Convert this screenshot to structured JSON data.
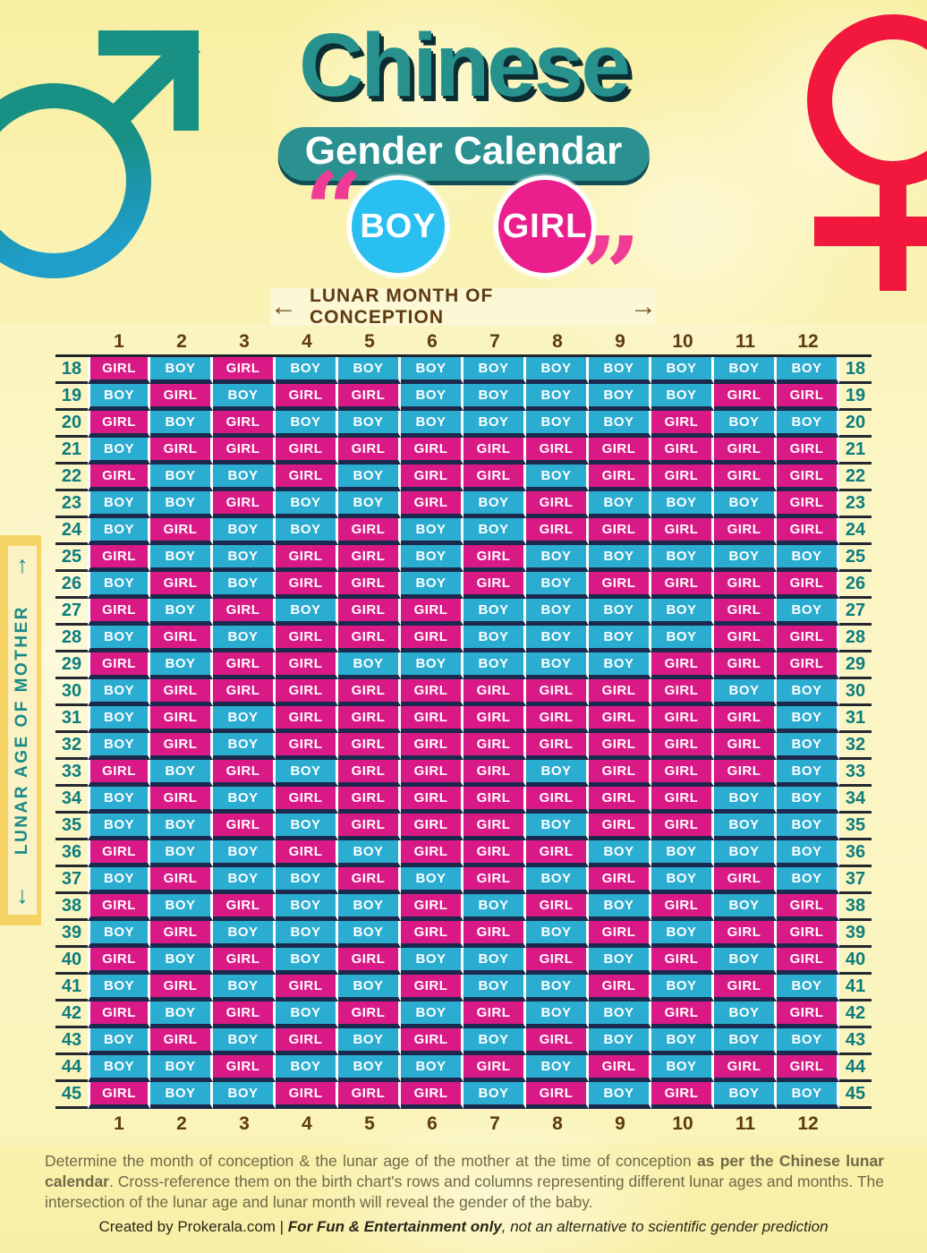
{
  "header": {
    "title": "Chinese",
    "subtitle": "Gender Calendar",
    "boy_label": "BOY",
    "girl_label": "GIRL",
    "open_quote": "“",
    "close_quote": "”"
  },
  "axes": {
    "top_label": "LUNAR MONTH OF CONCEPTION",
    "top_left_arrow": "←",
    "top_right_arrow": "→",
    "left_label": "LUNAR AGE OF MOTHER",
    "left_up_arrow": "↑",
    "left_down_arrow": "↓"
  },
  "colors": {
    "title_teal": "#27918D",
    "badge_teal": "#2B9190",
    "quote_pink": "#F03B95",
    "boy_circle": "#29BFF0",
    "girl_circle": "#EA1E8D",
    "boy_cell": "#2BACD1",
    "girl_cell": "#D91A86",
    "row_border_navy": "#1B2A4C",
    "header_brown": "#5E3B10",
    "age_teal": "#0F7C7C",
    "axis_teal": "#1A8989",
    "sidebar_gold": "#F6D365",
    "sidebar_panel": "#FAF2C4",
    "banner_bg": "#FCF7D4",
    "page_yellow": "#FAF2B2",
    "male_symbol_teal": "#189184",
    "male_symbol_blue": "#1E9EC9",
    "female_symbol_red": "#F2173C",
    "description_text": "#6F6946",
    "credit_text": "#2A271B"
  },
  "chart_data": {
    "type": "table",
    "title": "Chinese Gender Calendar",
    "x_axis_label": "LUNAR MONTH OF CONCEPTION",
    "y_axis_label": "LUNAR AGE OF MOTHER",
    "columns": [
      "1",
      "2",
      "3",
      "4",
      "5",
      "6",
      "7",
      "8",
      "9",
      "10",
      "11",
      "12"
    ],
    "rows": [
      {
        "age": "18",
        "cells": [
          "GIRL",
          "BOY",
          "GIRL",
          "BOY",
          "BOY",
          "BOY",
          "BOY",
          "BOY",
          "BOY",
          "BOY",
          "BOY",
          "BOY"
        ]
      },
      {
        "age": "19",
        "cells": [
          "BOY",
          "GIRL",
          "BOY",
          "GIRL",
          "GIRL",
          "BOY",
          "BOY",
          "BOY",
          "BOY",
          "BOY",
          "GIRL",
          "GIRL"
        ]
      },
      {
        "age": "20",
        "cells": [
          "GIRL",
          "BOY",
          "GIRL",
          "BOY",
          "BOY",
          "BOY",
          "BOY",
          "BOY",
          "BOY",
          "GIRL",
          "BOY",
          "BOY"
        ]
      },
      {
        "age": "21",
        "cells": [
          "BOY",
          "GIRL",
          "GIRL",
          "GIRL",
          "GIRL",
          "GIRL",
          "GIRL",
          "GIRL",
          "GIRL",
          "GIRL",
          "GIRL",
          "GIRL"
        ]
      },
      {
        "age": "22",
        "cells": [
          "GIRL",
          "BOY",
          "BOY",
          "GIRL",
          "BOY",
          "GIRL",
          "GIRL",
          "BOY",
          "GIRL",
          "GIRL",
          "GIRL",
          "GIRL"
        ]
      },
      {
        "age": "23",
        "cells": [
          "BOY",
          "BOY",
          "GIRL",
          "BOY",
          "BOY",
          "GIRL",
          "BOY",
          "GIRL",
          "BOY",
          "BOY",
          "BOY",
          "GIRL"
        ]
      },
      {
        "age": "24",
        "cells": [
          "BOY",
          "GIRL",
          "BOY",
          "BOY",
          "GIRL",
          "BOY",
          "BOY",
          "GIRL",
          "GIRL",
          "GIRL",
          "GIRL",
          "GIRL"
        ]
      },
      {
        "age": "25",
        "cells": [
          "GIRL",
          "BOY",
          "BOY",
          "GIRL",
          "GIRL",
          "BOY",
          "GIRL",
          "BOY",
          "BOY",
          "BOY",
          "BOY",
          "BOY"
        ]
      },
      {
        "age": "26",
        "cells": [
          "BOY",
          "GIRL",
          "BOY",
          "GIRL",
          "GIRL",
          "BOY",
          "GIRL",
          "BOY",
          "GIRL",
          "GIRL",
          "GIRL",
          "GIRL"
        ]
      },
      {
        "age": "27",
        "cells": [
          "GIRL",
          "BOY",
          "GIRL",
          "BOY",
          "GIRL",
          "GIRL",
          "BOY",
          "BOY",
          "BOY",
          "BOY",
          "GIRL",
          "BOY"
        ]
      },
      {
        "age": "28",
        "cells": [
          "BOY",
          "GIRL",
          "BOY",
          "GIRL",
          "GIRL",
          "GIRL",
          "BOY",
          "BOY",
          "BOY",
          "BOY",
          "GIRL",
          "GIRL"
        ]
      },
      {
        "age": "29",
        "cells": [
          "GIRL",
          "BOY",
          "GIRL",
          "GIRL",
          "BOY",
          "BOY",
          "BOY",
          "BOY",
          "BOY",
          "GIRL",
          "GIRL",
          "GIRL"
        ]
      },
      {
        "age": "30",
        "cells": [
          "BOY",
          "GIRL",
          "GIRL",
          "GIRL",
          "GIRL",
          "GIRL",
          "GIRL",
          "GIRL",
          "GIRL",
          "GIRL",
          "BOY",
          "BOY"
        ]
      },
      {
        "age": "31",
        "cells": [
          "BOY",
          "GIRL",
          "BOY",
          "GIRL",
          "GIRL",
          "GIRL",
          "GIRL",
          "GIRL",
          "GIRL",
          "GIRL",
          "GIRL",
          "BOY"
        ]
      },
      {
        "age": "32",
        "cells": [
          "BOY",
          "GIRL",
          "BOY",
          "GIRL",
          "GIRL",
          "GIRL",
          "GIRL",
          "GIRL",
          "GIRL",
          "GIRL",
          "GIRL",
          "BOY"
        ]
      },
      {
        "age": "33",
        "cells": [
          "GIRL",
          "BOY",
          "GIRL",
          "BOY",
          "GIRL",
          "GIRL",
          "GIRL",
          "BOY",
          "GIRL",
          "GIRL",
          "GIRL",
          "BOY"
        ]
      },
      {
        "age": "34",
        "cells": [
          "BOY",
          "GIRL",
          "BOY",
          "GIRL",
          "GIRL",
          "GIRL",
          "GIRL",
          "GIRL",
          "GIRL",
          "GIRL",
          "BOY",
          "BOY"
        ]
      },
      {
        "age": "35",
        "cells": [
          "BOY",
          "BOY",
          "GIRL",
          "BOY",
          "GIRL",
          "GIRL",
          "GIRL",
          "BOY",
          "GIRL",
          "GIRL",
          "BOY",
          "BOY"
        ]
      },
      {
        "age": "36",
        "cells": [
          "GIRL",
          "BOY",
          "BOY",
          "GIRL",
          "BOY",
          "GIRL",
          "GIRL",
          "GIRL",
          "BOY",
          "BOY",
          "BOY",
          "BOY"
        ]
      },
      {
        "age": "37",
        "cells": [
          "BOY",
          "GIRL",
          "BOY",
          "BOY",
          "GIRL",
          "BOY",
          "GIRL",
          "BOY",
          "GIRL",
          "BOY",
          "GIRL",
          "BOY"
        ]
      },
      {
        "age": "38",
        "cells": [
          "GIRL",
          "BOY",
          "GIRL",
          "BOY",
          "BOY",
          "GIRL",
          "BOY",
          "GIRL",
          "BOY",
          "GIRL",
          "BOY",
          "GIRL"
        ]
      },
      {
        "age": "39",
        "cells": [
          "BOY",
          "GIRL",
          "BOY",
          "BOY",
          "BOY",
          "GIRL",
          "GIRL",
          "BOY",
          "GIRL",
          "BOY",
          "GIRL",
          "GIRL"
        ]
      },
      {
        "age": "40",
        "cells": [
          "GIRL",
          "BOY",
          "GIRL",
          "BOY",
          "GIRL",
          "BOY",
          "BOY",
          "GIRL",
          "BOY",
          "GIRL",
          "BOY",
          "GIRL"
        ]
      },
      {
        "age": "41",
        "cells": [
          "BOY",
          "GIRL",
          "BOY",
          "GIRL",
          "BOY",
          "GIRL",
          "BOY",
          "BOY",
          "GIRL",
          "BOY",
          "GIRL",
          "BOY"
        ]
      },
      {
        "age": "42",
        "cells": [
          "GIRL",
          "BOY",
          "GIRL",
          "BOY",
          "GIRL",
          "BOY",
          "GIRL",
          "BOY",
          "BOY",
          "GIRL",
          "BOY",
          "GIRL"
        ]
      },
      {
        "age": "43",
        "cells": [
          "BOY",
          "GIRL",
          "BOY",
          "GIRL",
          "BOY",
          "GIRL",
          "BOY",
          "GIRL",
          "BOY",
          "BOY",
          "BOY",
          "BOY"
        ]
      },
      {
        "age": "44",
        "cells": [
          "BOY",
          "BOY",
          "GIRL",
          "BOY",
          "BOY",
          "BOY",
          "GIRL",
          "BOY",
          "GIRL",
          "BOY",
          "GIRL",
          "GIRL"
        ]
      },
      {
        "age": "45",
        "cells": [
          "GIRL",
          "BOY",
          "BOY",
          "GIRL",
          "GIRL",
          "GIRL",
          "BOY",
          "GIRL",
          "BOY",
          "GIRL",
          "BOY",
          "BOY"
        ]
      }
    ]
  },
  "footer": {
    "desc_part1": "Determine the month of conception & the lunar age of the mother at the time of conception ",
    "desc_part2_bold": "as per the Chinese lunar calendar",
    "desc_part3": ". Cross-reference them on the birth chart's rows and columns representing different lunar ages and months. The intersection of the lunar age and lunar month will reveal the gender of the baby.",
    "credit_part1": "Created by Prokerala.com | ",
    "credit_part2_bold_italic": "For Fun & Entertainment only",
    "credit_part3_italic": ", not an alternative to scientific gender prediction"
  }
}
